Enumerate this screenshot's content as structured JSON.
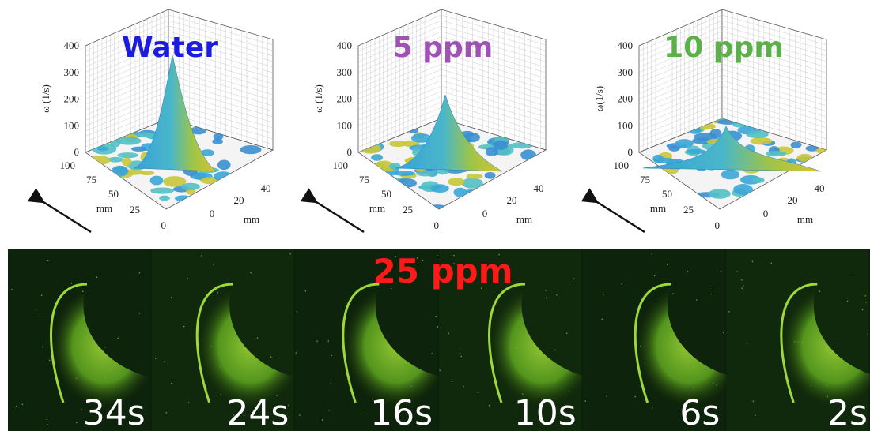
{
  "panels": [
    {
      "title": "Water",
      "title_color": "#1c1ce0",
      "z_label": "ω (1/s)",
      "z_ticks": [
        "0",
        "100",
        "200",
        "300",
        "400"
      ],
      "y_ticks": [
        "0",
        "25",
        "50",
        "75",
        "100"
      ],
      "y_label": "mm",
      "x_ticks": [
        "0",
        "20",
        "40"
      ],
      "x_label": "mm"
    },
    {
      "title": "5 ppm",
      "title_color": "#a052b4",
      "z_label": "ω (1/s)",
      "z_ticks": [
        "0",
        "100",
        "200",
        "300",
        "400"
      ],
      "y_ticks": [
        "0",
        "25",
        "50",
        "75",
        "100"
      ],
      "y_label": "mm",
      "x_ticks": [
        "0",
        "20",
        "40"
      ],
      "x_label": "mm"
    },
    {
      "title": "10 ppm",
      "title_color": "#5cb04a",
      "z_label": "ω(1/s)",
      "z_ticks": [
        "0",
        "100",
        "200",
        "300",
        "400"
      ],
      "y_ticks": [
        "0",
        "25",
        "50",
        "75",
        "100"
      ],
      "y_label": "mm",
      "x_ticks": [
        "0",
        "20",
        "40"
      ],
      "x_label": "mm"
    }
  ],
  "strip": {
    "label": "25 ppm",
    "label_color": "#ff1a1a",
    "frames": [
      "34s",
      "24s",
      "16s",
      "10s",
      "6s",
      "2s"
    ]
  }
}
